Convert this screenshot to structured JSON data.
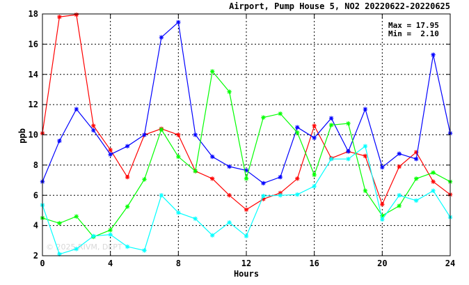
{
  "chart_data": {
    "type": "line",
    "title": "Airport, Pump House 5, NO2 20220622-20220625",
    "xlabel": "Hours",
    "ylabel": "ppb",
    "xlim": [
      0,
      24
    ],
    "ylim": [
      2,
      18
    ],
    "x_ticks": [
      0,
      4,
      8,
      12,
      16,
      20,
      24
    ],
    "y_ticks": [
      2,
      4,
      6,
      8,
      10,
      12,
      14,
      16,
      18
    ],
    "grid": true,
    "stats": {
      "max_text": "Max = 17.95",
      "min_text": "Min =  2.10"
    },
    "watermark": "© 2025 RIVM, DEPT",
    "x": [
      0,
      1,
      2,
      3,
      4,
      5,
      6,
      7,
      8,
      9,
      10,
      11,
      12,
      13,
      14,
      15,
      16,
      17,
      18,
      19,
      20,
      21,
      22,
      23,
      24
    ],
    "series": [
      {
        "color": "#ff0000",
        "values": [
          10.1,
          17.8,
          17.95,
          10.6,
          9.0,
          7.2,
          10.0,
          10.4,
          10.0,
          7.6,
          7.1,
          6.0,
          5.05,
          5.75,
          6.15,
          7.1,
          10.6,
          8.45,
          8.9,
          8.6,
          5.4,
          7.9,
          8.85,
          6.9,
          6.05
        ]
      },
      {
        "color": "#0000ff",
        "values": [
          6.9,
          9.6,
          11.7,
          10.3,
          8.7,
          9.25,
          10.0,
          16.45,
          17.45,
          10.0,
          8.55,
          7.9,
          7.65,
          6.8,
          7.2,
          10.5,
          9.8,
          11.1,
          8.9,
          11.7,
          7.85,
          8.75,
          8.4,
          15.3,
          10.1
        ]
      },
      {
        "color": "#00ff00",
        "values": [
          4.5,
          4.15,
          4.6,
          3.25,
          3.7,
          5.25,
          7.05,
          10.35,
          8.55,
          7.6,
          14.2,
          12.85,
          7.1,
          11.15,
          11.4,
          10.15,
          7.35,
          10.65,
          10.75,
          6.3,
          4.65,
          5.3,
          7.1,
          7.5,
          6.9
        ]
      },
      {
        "color": "#00ffff",
        "values": [
          5.35,
          2.1,
          2.45,
          3.3,
          3.4,
          2.6,
          2.35,
          6.0,
          4.85,
          4.45,
          3.35,
          4.2,
          3.3,
          5.95,
          6.0,
          6.05,
          6.6,
          8.4,
          8.4,
          9.25,
          4.4,
          6.0,
          5.65,
          6.3,
          4.55
        ]
      }
    ]
  }
}
